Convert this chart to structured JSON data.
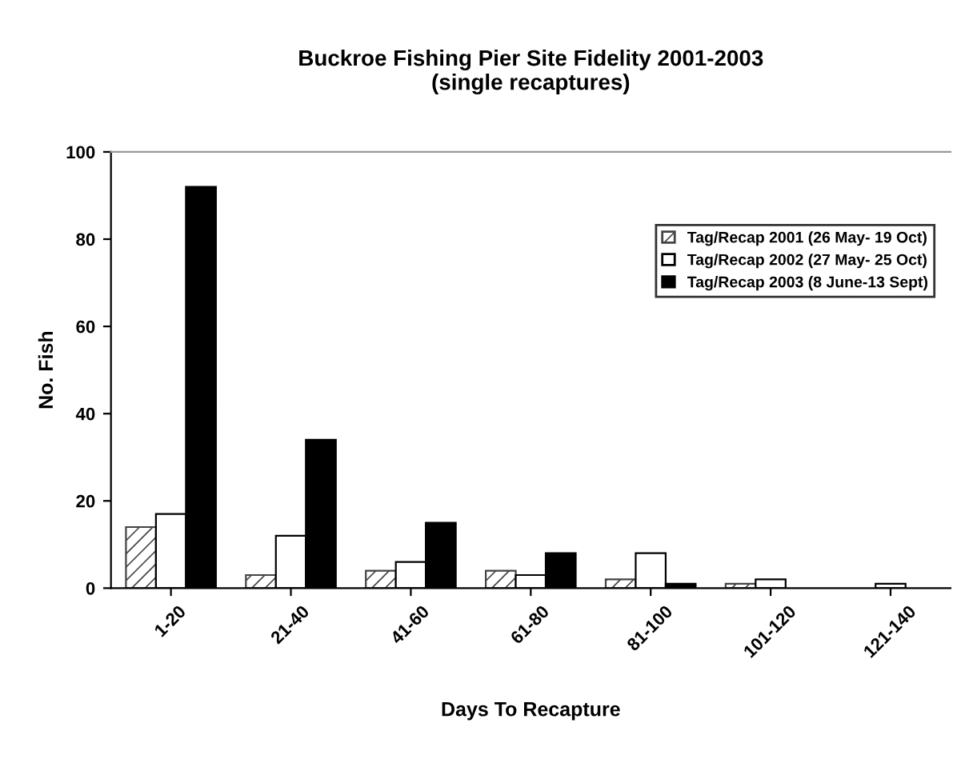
{
  "chart_data": {
    "type": "bar",
    "title": "Buckroe Fishing Pier Site Fidelity 2001-2003\n(single recaptures)",
    "xlabel": "Days To Recapture",
    "ylabel": "No. Fish",
    "categories": [
      "1-20",
      "21-40",
      "41-60",
      "61-80",
      "81-100",
      "101-120",
      "121-140"
    ],
    "series": [
      {
        "name": "Tag/Recap 2001 (26 May- 19 Oct)",
        "color": "#444444",
        "values": [
          14,
          3,
          4,
          4,
          2,
          1,
          0
        ]
      },
      {
        "name": "Tag/Recap 2002 (27 May- 25 Oct)",
        "color": "#ffffff",
        "values": [
          17,
          12,
          6,
          3,
          8,
          2,
          1
        ]
      },
      {
        "name": "Tag/Recap 2003 (8 June-13 Sept)",
        "color": "#000000",
        "values": [
          92,
          34,
          15,
          8,
          1,
          0,
          0
        ]
      }
    ],
    "ylim": [
      0,
      100
    ],
    "yticks": [
      0,
      20,
      40,
      60,
      80,
      100
    ],
    "grid": false,
    "legend": "top right"
  }
}
